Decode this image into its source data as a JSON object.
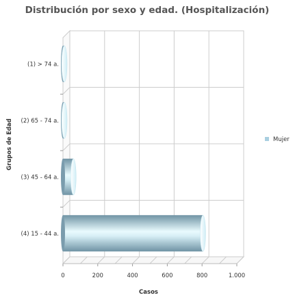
{
  "chart_data": {
    "type": "bar",
    "orientation": "horizontal",
    "style": "3d-cylinder",
    "title": "Distribución por sexo y edad. (Hospitalización)",
    "xlabel": "Casos",
    "ylabel": "Grupos de Edad",
    "categories": [
      "(1) > 74 a.",
      "(2) 65 - 74 a.",
      "(3) 45 - 64 a.",
      "(4) 15 - 44 a."
    ],
    "series": [
      {
        "name": "Mujer",
        "values": [
          5,
          5,
          60,
          805
        ]
      }
    ],
    "xlim": [
      0,
      1000
    ],
    "xticks": [
      0,
      200,
      400,
      600,
      800,
      1000
    ],
    "xtick_labels": [
      "0",
      "200",
      "400",
      "600",
      "800",
      "1.000"
    ],
    "grid": true,
    "legend_position": "right",
    "colors": {
      "bar": "#8fb2c2",
      "bar_highlight": "#e9fbfe",
      "grid": "#cccccc",
      "legend_marker": "#a9cfe0"
    }
  }
}
